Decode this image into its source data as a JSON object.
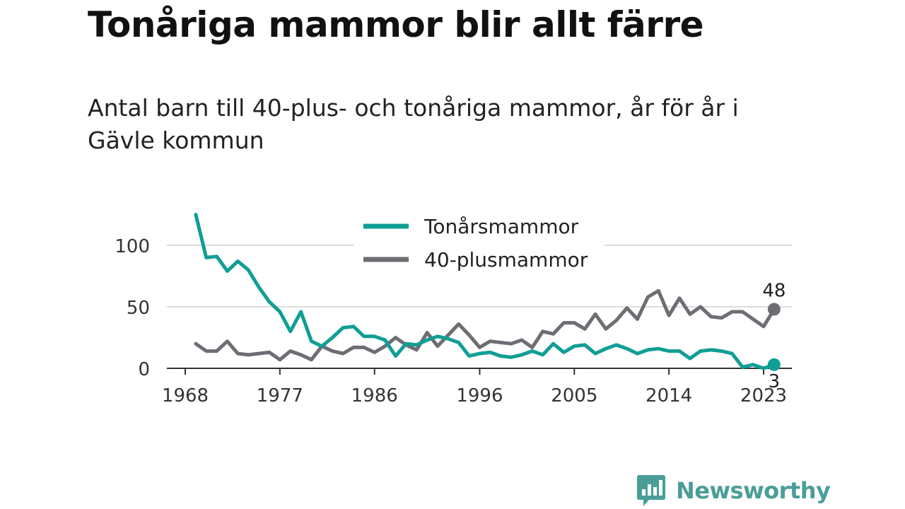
{
  "chart_data": {
    "type": "line",
    "title": "Tonåriga mammor blir allt färre",
    "subtitle": "Antal barn till 40-plus- och tonåriga mammor, år för år i Gävle kommun",
    "x_tick_labels": [
      "1968",
      "1977",
      "1986",
      "1996",
      "2005",
      "2014",
      "2023"
    ],
    "y_tick_labels": [
      "0",
      "50",
      "100"
    ],
    "ylim": [
      0,
      130
    ],
    "xlim": [
      1968,
      2024
    ],
    "legend_position": "top-center",
    "grid": true,
    "x": [
      1969,
      1970,
      1971,
      1972,
      1973,
      1974,
      1975,
      1976,
      1977,
      1978,
      1979,
      1980,
      1981,
      1982,
      1983,
      1984,
      1985,
      1986,
      1987,
      1988,
      1989,
      1990,
      1991,
      1992,
      1993,
      1994,
      1995,
      1996,
      1997,
      1998,
      1999,
      2000,
      2001,
      2002,
      2003,
      2004,
      2005,
      2006,
      2007,
      2008,
      2009,
      2010,
      2011,
      2012,
      2013,
      2014,
      2015,
      2016,
      2017,
      2018,
      2019,
      2020,
      2021,
      2022,
      2023,
      2024
    ],
    "series": [
      {
        "name": "Tonårsmammor",
        "color": "#109e96",
        "values": [
          125,
          90,
          91,
          79,
          87,
          80,
          66,
          54,
          46,
          30,
          46,
          22,
          18,
          25,
          33,
          34,
          26,
          26,
          23,
          10,
          20,
          19,
          23,
          26,
          24,
          21,
          10,
          12,
          13,
          10,
          9,
          11,
          14,
          11,
          20,
          13,
          18,
          19,
          12,
          16,
          19,
          16,
          12,
          15,
          16,
          14,
          14,
          8,
          14,
          15,
          14,
          12,
          1,
          3,
          0,
          3
        ],
        "end_label": "3"
      },
      {
        "name": "40-plusmammor",
        "color": "#6d6d73",
        "values": [
          20,
          14,
          14,
          22,
          12,
          11,
          12,
          13,
          7,
          14,
          11,
          7,
          18,
          14,
          12,
          17,
          17,
          13,
          18,
          25,
          19,
          15,
          29,
          18,
          27,
          36,
          27,
          17,
          22,
          21,
          20,
          23,
          17,
          30,
          28,
          37,
          37,
          32,
          44,
          32,
          39,
          49,
          40,
          58,
          63,
          43,
          57,
          44,
          50,
          42,
          41,
          46,
          46,
          40,
          34,
          48
        ],
        "end_label": "48"
      }
    ]
  },
  "brand": {
    "name": "Newsworthy",
    "icon": "bar-chart-speech-icon",
    "color": "#4a9e99"
  }
}
